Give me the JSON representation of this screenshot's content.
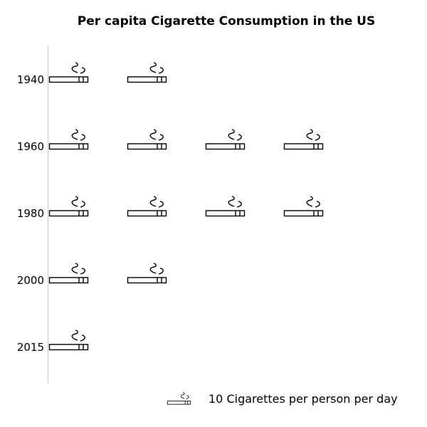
{
  "chart_data": {
    "type": "pictograph",
    "title": "Per capita Cigarette Consumption in the US",
    "categories": [
      "1940",
      "1960",
      "1980",
      "2000",
      "2015"
    ],
    "values": [
      2,
      4,
      4,
      2,
      1
    ],
    "unit": "10 Cigarettes per person per day",
    "icon": "cigarette-icon"
  }
}
